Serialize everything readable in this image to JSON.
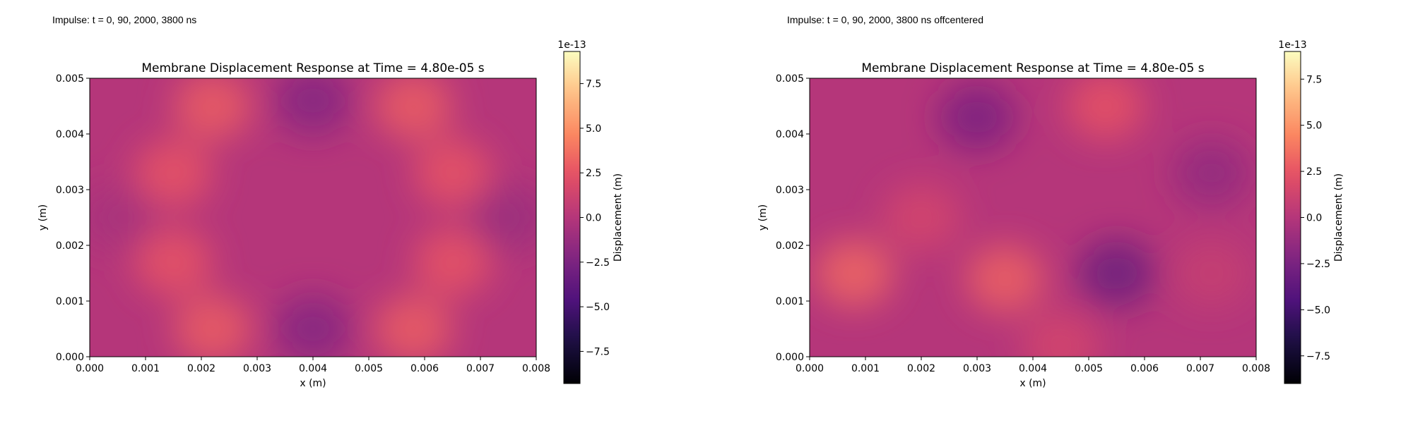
{
  "panels": [
    {
      "caption": "Impulse: t = 0, 90, 2000, 3800 ns"
    },
    {
      "caption": "Impulse: t = 0, 90, 2000, 3800 ns offcentered"
    }
  ],
  "chart_data": [
    {
      "type": "heatmap",
      "title": "Membrane Displacement Response at Time = 4.80e-05 s",
      "xlabel": "x (m)",
      "ylabel": "y (m)",
      "xlim": [
        0,
        0.008
      ],
      "ylim": [
        0,
        0.005
      ],
      "x_ticks": [
        "0.000",
        "0.001",
        "0.002",
        "0.003",
        "0.004",
        "0.005",
        "0.006",
        "0.007",
        "0.008"
      ],
      "y_ticks": [
        "0.000",
        "0.001",
        "0.002",
        "0.003",
        "0.004",
        "0.005"
      ],
      "colormap": "magma",
      "colorbar": {
        "label": "Displacement (m)",
        "offset_text": "1e-13",
        "range": [
          -9.3,
          9.3
        ],
        "ticks": [
          "−7.5",
          "−5.0",
          "−2.5",
          "0.0",
          "2.5",
          "5.0",
          "7.5"
        ],
        "tick_values": [
          -7.5,
          -5.0,
          -2.5,
          0.0,
          2.5,
          5.0,
          7.5
        ]
      },
      "field_features": [
        {
          "x": 0.0015,
          "y": 0.0033,
          "value": 2.6
        },
        {
          "x": 0.0015,
          "y": 0.0017,
          "value": 2.6
        },
        {
          "x": 0.0022,
          "y": 0.0045,
          "value": 3.0
        },
        {
          "x": 0.0022,
          "y": 0.0005,
          "value": 3.0
        },
        {
          "x": 0.0065,
          "y": 0.0033,
          "value": 2.6
        },
        {
          "x": 0.0065,
          "y": 0.0017,
          "value": 2.6
        },
        {
          "x": 0.0058,
          "y": 0.0045,
          "value": 3.0
        },
        {
          "x": 0.0058,
          "y": 0.0005,
          "value": 3.0
        },
        {
          "x": 0.004,
          "y": 0.0046,
          "value": -2.2
        },
        {
          "x": 0.004,
          "y": 0.0005,
          "value": -2.2
        },
        {
          "x": 0.0075,
          "y": 0.0025,
          "value": -1.2
        },
        {
          "x": 0.0005,
          "y": 0.0025,
          "value": -0.6
        }
      ]
    },
    {
      "type": "heatmap",
      "title": "Membrane Displacement Response at Time = 4.80e-05 s",
      "xlabel": "x (m)",
      "ylabel": "y (m)",
      "xlim": [
        0,
        0.008
      ],
      "ylim": [
        0,
        0.005
      ],
      "x_ticks": [
        "0.000",
        "0.001",
        "0.002",
        "0.003",
        "0.004",
        "0.005",
        "0.006",
        "0.007",
        "0.008"
      ],
      "y_ticks": [
        "0.000",
        "0.001",
        "0.002",
        "0.003",
        "0.004",
        "0.005"
      ],
      "colormap": "magma",
      "colorbar": {
        "label": "Displacement (m)",
        "offset_text": "1e-13",
        "range": [
          -9.0,
          9.0
        ],
        "ticks": [
          "−7.5",
          "−5.0",
          "−2.5",
          "0.0",
          "2.5",
          "5.0",
          "7.5"
        ],
        "tick_values": [
          -7.5,
          -5.0,
          -2.5,
          0.0,
          2.5,
          5.0,
          7.5
        ]
      },
      "field_features": [
        {
          "x": 0.0008,
          "y": 0.0015,
          "value": 3.2
        },
        {
          "x": 0.0035,
          "y": 0.0014,
          "value": 3.0
        },
        {
          "x": 0.002,
          "y": 0.0025,
          "value": 1.5
        },
        {
          "x": 0.0053,
          "y": 0.0045,
          "value": 2.4
        },
        {
          "x": 0.0045,
          "y": 0.0002,
          "value": 1.5
        },
        {
          "x": 0.003,
          "y": 0.0043,
          "value": -2.5
        },
        {
          "x": 0.0055,
          "y": 0.0015,
          "value": -3.2
        },
        {
          "x": 0.0072,
          "y": 0.0033,
          "value": -1.5
        },
        {
          "x": 0.0072,
          "y": 0.0015,
          "value": 0.8
        }
      ]
    }
  ]
}
